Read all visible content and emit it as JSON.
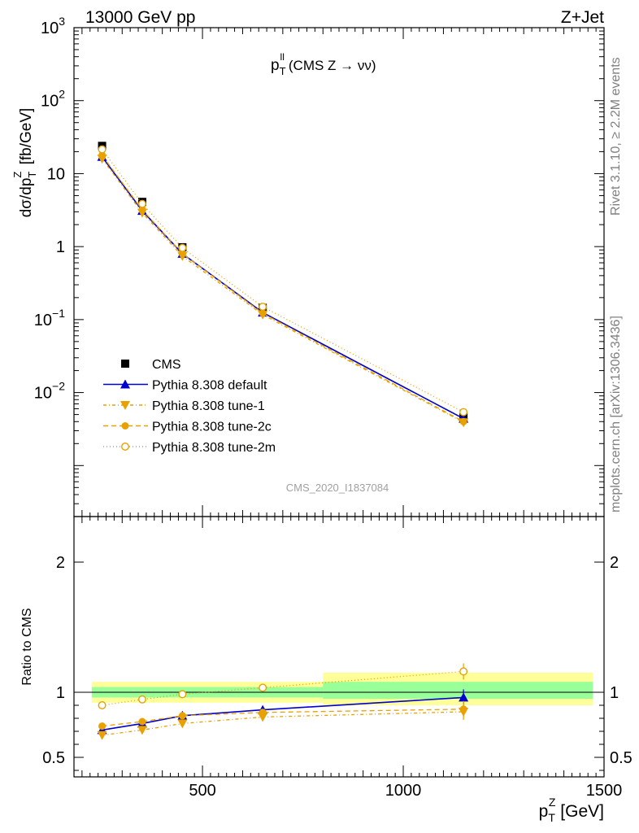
{
  "header": {
    "left": "13000 GeV pp",
    "right": "Z+Jet"
  },
  "side_labels": {
    "rivet": "Rivet 3.1.10, ≥ 2.2M events",
    "mcplots": "mcplots.cern.ch [arXiv:1306.3436]"
  },
  "chart_data": [
    {
      "type": "line",
      "panel": "main",
      "title": "p_T^ll (CMS Z → νν)",
      "title_main": "p",
      "title_sub": "T",
      "title_sup": "ll",
      "title_rest": "(CMS Z → νν)",
      "watermark": "CMS_2020_I1837084",
      "ylabel": "dσ/dp_T^Z [fb/GeV]",
      "yscale": "log",
      "ylim": [
        0.0002,
        1000
      ],
      "xlim": [
        180,
        1500
      ],
      "y_ticks": [
        {
          "value": 1000,
          "base": "10",
          "exp": "3"
        },
        {
          "value": 100,
          "base": "10",
          "exp": "2"
        },
        {
          "value": 10,
          "base": "10",
          "exp": ""
        },
        {
          "value": 1,
          "base": "1",
          "exp": ""
        },
        {
          "value": 0.1,
          "base": "10",
          "exp": "−1"
        },
        {
          "value": 0.01,
          "base": "10",
          "exp": "−2"
        }
      ],
      "x": [
        250,
        350,
        450,
        650,
        1150
      ],
      "series": [
        {
          "name": "CMS",
          "marker": "square",
          "color": "#000000",
          "dash": "",
          "y": [
            24,
            4.1,
            0.98,
            0.145,
            0.0046
          ]
        },
        {
          "name": "Pythia 8.308 default",
          "marker": "triangle-up",
          "color": "#0000cc",
          "dash": "",
          "y": [
            17,
            3.1,
            0.8,
            0.125,
            0.0044
          ]
        },
        {
          "name": "Pythia 8.308 tune-1",
          "marker": "triangle-down",
          "color": "#e8a100",
          "dash": "4,3,1,3",
          "y": [
            16,
            2.9,
            0.74,
            0.117,
            0.0039
          ]
        },
        {
          "name": "Pythia 8.308 tune-2c",
          "marker": "circle",
          "color": "#e8a100",
          "dash": "6,4",
          "y": [
            17.8,
            3.2,
            0.8,
            0.122,
            0.004
          ]
        },
        {
          "name": "Pythia 8.308 tune-2m",
          "marker": "circle-open",
          "color": "#e8a100",
          "dash": "1,3",
          "y": [
            21.5,
            3.85,
            0.96,
            0.15,
            0.0054
          ]
        }
      ]
    },
    {
      "type": "line",
      "panel": "ratio",
      "ylabel": "Ratio to CMS",
      "xlabel": "p_T^Z [GeV]",
      "xlabel_main": "p",
      "xlabel_sub": "T",
      "xlabel_sup": "Z",
      "xlabel_rest": " [GeV]",
      "xlim": [
        180,
        1500
      ],
      "ylim": [
        0.35,
        2.35
      ],
      "x_ticks": [
        "500",
        "1000",
        "1500"
      ],
      "y_ticks": [
        "0.5",
        "1",
        "2"
      ],
      "bands": [
        {
          "x_range": [
            200,
            800
          ],
          "green": [
            0.96,
            1.04
          ],
          "yellow": [
            0.92,
            1.08
          ]
        },
        {
          "x_range": [
            800,
            1500
          ],
          "green": [
            0.95,
            1.08
          ],
          "yellow": [
            0.9,
            1.15
          ]
        }
      ],
      "x": [
        250,
        350,
        450,
        650,
        1150
      ],
      "series": [
        {
          "name": "Pythia 8.308 default",
          "marker": "triangle-up",
          "color": "#0000cc",
          "dash": "",
          "y": [
            0.71,
            0.76,
            0.82,
            0.865,
            0.96
          ]
        },
        {
          "name": "Pythia 8.308 tune-1",
          "marker": "triangle-down",
          "color": "#e8a100",
          "dash": "4,3,1,3",
          "y": [
            0.67,
            0.71,
            0.76,
            0.81,
            0.85
          ]
        },
        {
          "name": "Pythia 8.308 tune-2c",
          "marker": "circle",
          "color": "#e8a100",
          "dash": "6,4",
          "y": [
            0.74,
            0.775,
            0.82,
            0.845,
            0.87
          ]
        },
        {
          "name": "Pythia 8.308 tune-2m",
          "marker": "circle-open",
          "color": "#e8a100",
          "dash": "1,3",
          "y": [
            0.9,
            0.945,
            0.985,
            1.035,
            1.16
          ]
        }
      ]
    }
  ]
}
